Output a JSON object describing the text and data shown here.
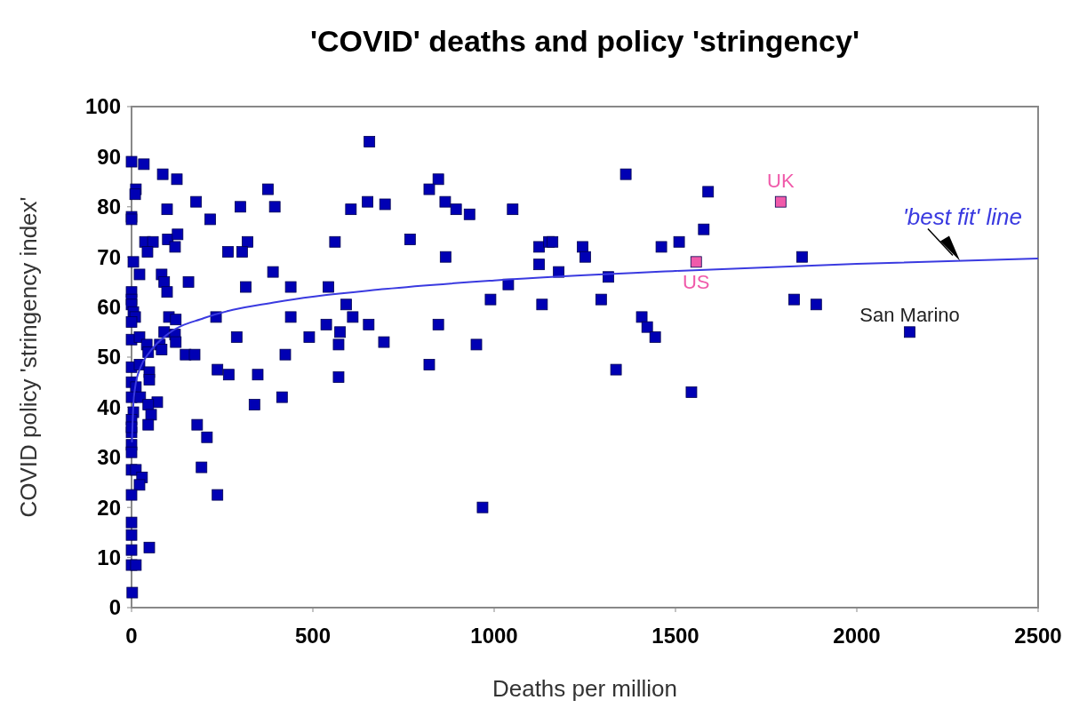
{
  "chart_data": {
    "type": "scatter",
    "title": "'COVID' deaths and policy 'stringency'",
    "xlabel": "Deaths per million",
    "ylabel": "COVID policy 'stringency index'",
    "xlim": [
      0,
      2500
    ],
    "xticks": [
      0,
      500,
      1000,
      1500,
      2000,
      2500
    ],
    "ylim": [
      0,
      100
    ],
    "yticks": [
      0,
      10,
      20,
      30,
      40,
      50,
      60,
      70,
      80,
      90,
      100
    ],
    "marker": "square",
    "line_style": "solid",
    "annotations": [
      {
        "text": "San Marino",
        "x": 2146,
        "y": 55
      }
    ],
    "series": [
      {
        "color": "#0000b4",
        "x": [
          0,
          34,
          86,
          125,
          12,
          10,
          178,
          300,
          395,
          376,
          656,
          651,
          605,
          98,
          0,
          0,
          217,
          37,
          59,
          100,
          127,
          44,
          120,
          320,
          266,
          305,
          561,
          5,
          22,
          83,
          90,
          157,
          390,
          315,
          98,
          439,
          543,
          0,
          0,
          0,
          592,
          5,
          10,
          103,
          122,
          233,
          439,
          537,
          610,
          654,
          0,
          90,
          120,
          290,
          490,
          575,
          571,
          0,
          22,
          42,
          78,
          83,
          122,
          149,
          174,
          424,
          46,
          0,
          22,
          49,
          49,
          237,
          268,
          348,
          571,
          0,
          12,
          0,
          24,
          71,
          46,
          339,
          415,
          5,
          54,
          46,
          0,
          0,
          0,
          181,
          208,
          0,
          0,
          193,
          0,
          12,
          29,
          22,
          0,
          237,
          0,
          0,
          49,
          0,
          0,
          12,
          2,
          846,
          821,
          699,
          865,
          895,
          932,
          1051,
          1363,
          768,
          866,
          1124,
          1151,
          1161,
          1244,
          1251,
          1461,
          1510,
          1578,
          1590,
          1124,
          1178,
          1315,
          1039,
          990,
          1132,
          1295,
          846,
          696,
          1407,
          1422,
          1444,
          951,
          821,
          1336,
          1544,
          968,
          1849,
          1827,
          1888,
          2146
        ],
        "values": [
          89,
          88.5,
          86.5,
          85.5,
          83.5,
          82.5,
          81,
          80,
          80,
          83.5,
          93,
          81,
          79.5,
          79.5,
          78,
          77.5,
          77.5,
          73,
          73,
          73.5,
          74.5,
          71,
          72,
          73,
          71,
          71,
          73,
          69,
          66.5,
          66.5,
          65,
          65,
          67,
          64,
          63,
          64,
          64,
          63,
          61.5,
          60.5,
          60.5,
          59,
          58,
          58,
          57.5,
          58,
          58,
          56.5,
          58,
          56.5,
          57,
          55,
          54.5,
          54,
          54,
          55,
          52.5,
          53.5,
          54,
          52.5,
          52.5,
          51.5,
          53,
          50.5,
          50.5,
          50.5,
          51,
          48,
          48.5,
          47,
          45.5,
          47.5,
          46.5,
          46.5,
          46,
          45,
          44,
          42,
          42,
          41,
          40.5,
          40.5,
          42,
          39,
          38.5,
          36.5,
          37.5,
          35,
          36,
          36.5,
          34,
          32.5,
          31,
          28,
          27.5,
          27.5,
          26,
          24.5,
          22.5,
          22.5,
          17,
          14.5,
          12,
          11.5,
          8.5,
          8.5,
          3,
          85.5,
          83.5,
          80.5,
          81,
          79.5,
          78.5,
          79.5,
          86.5,
          73.5,
          70,
          72,
          73,
          73,
          72,
          70,
          72,
          73,
          75.5,
          83,
          68.5,
          67,
          66,
          64.5,
          61.5,
          60.5,
          61.5,
          56.5,
          53,
          58,
          56,
          54,
          52.5,
          48.5,
          47.5,
          43,
          20,
          70,
          61.5,
          60.5,
          55
        ]
      },
      {
        "type": "scatter",
        "name": "UK",
        "color": "#f05aaa",
        "x": [
          1790
        ],
        "values": [
          81
        ]
      },
      {
        "type": "scatter",
        "name": "US",
        "color": "#f05aaa",
        "x": [
          1557
        ],
        "values": [
          69
        ]
      },
      {
        "type": "line",
        "name": "'best fit' line",
        "marker": "none",
        "color": "#3a3ae0",
        "x": [
          1,
          5,
          10,
          25,
          50,
          100,
          200,
          400,
          700,
          1000,
          1500,
          2000,
          2500
        ],
        "values": [
          33,
          40.5,
          44,
          48,
          51,
          54.6,
          57.8,
          61,
          63.6,
          65.3,
          67.2,
          68.6,
          69.7
        ]
      }
    ]
  }
}
